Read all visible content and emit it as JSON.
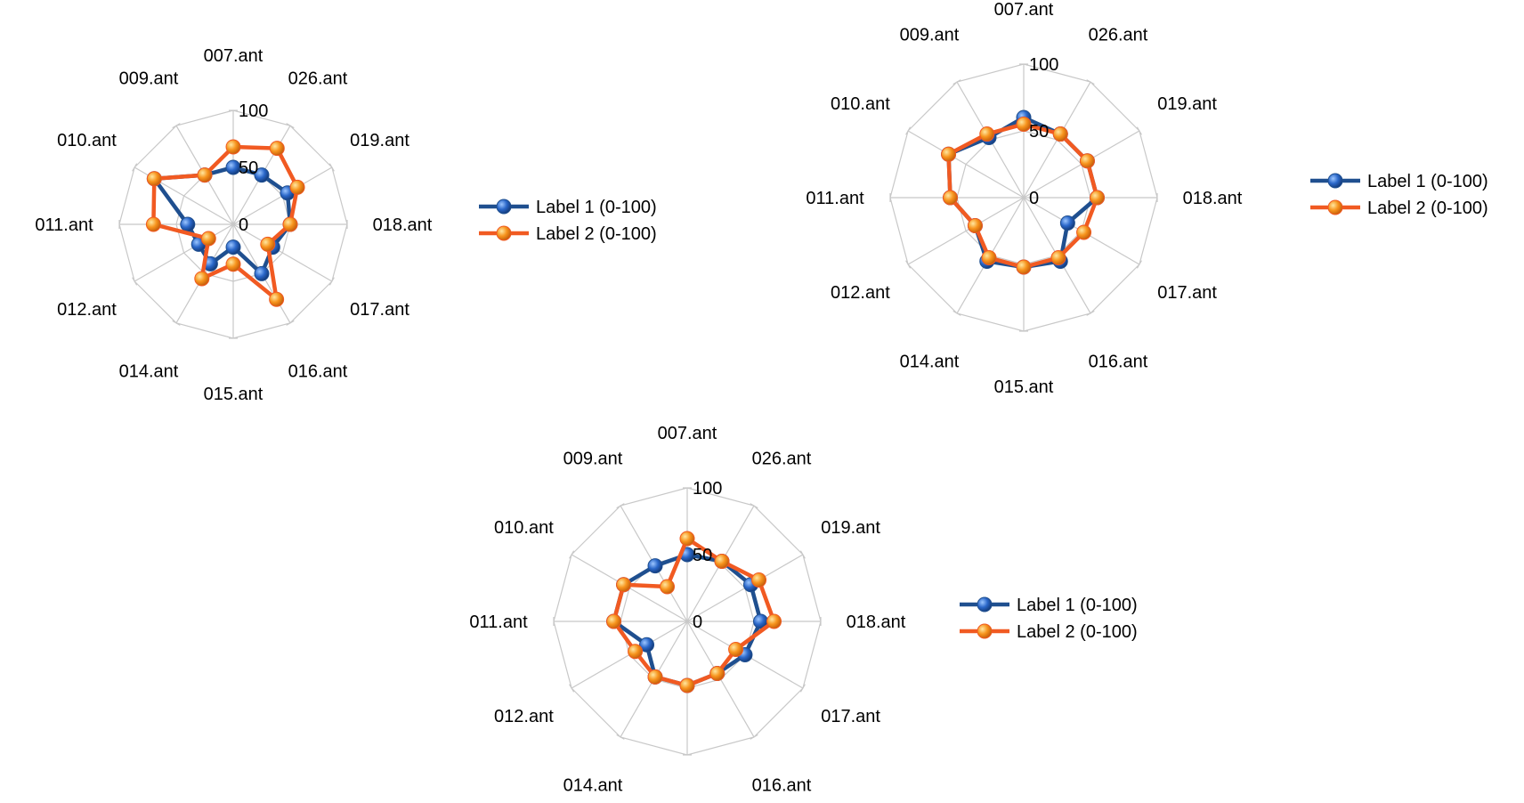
{
  "colors": {
    "label1": "#1f4f8f",
    "label1_marker": "#2a67c9",
    "label2": "#f15a22",
    "label2_marker": "#f7941d",
    "grid": "#c8c8c8",
    "text": "#000000"
  },
  "chart_data": [
    {
      "type": "radar",
      "categories": [
        "007.ant",
        "026.ant",
        "019.ant",
        "018.ant",
        "017.ant",
        "016.ant",
        "015.ant",
        "014.ant",
        "012.ant",
        "011.ant",
        "010.ant",
        "009.ant"
      ],
      "ylim": [
        0,
        100
      ],
      "ticks": [
        "0",
        "50",
        "100"
      ],
      "grid": true,
      "legend": "right",
      "series": [
        {
          "name": "Label 1 (0-100)",
          "values": [
            50,
            50,
            55,
            50,
            40,
            50,
            20,
            40,
            35,
            40,
            80,
            50
          ]
        },
        {
          "name": "Label 2 (0-100)",
          "values": [
            68,
            77,
            65,
            50,
            35,
            76,
            35,
            55,
            25,
            70,
            80,
            50
          ]
        }
      ]
    },
    {
      "type": "radar",
      "categories": [
        "007.ant",
        "026.ant",
        "019.ant",
        "018.ant",
        "017.ant",
        "016.ant",
        "015.ant",
        "014.ant",
        "012.ant",
        "011.ant",
        "010.ant",
        "009.ant"
      ],
      "ylim": [
        0,
        100
      ],
      "ticks": [
        "0",
        "50",
        "100"
      ],
      "grid": true,
      "legend": "right",
      "series": [
        {
          "name": "Label 1 (0-100)",
          "values": [
            60,
            55,
            55,
            55,
            38,
            55,
            52,
            55,
            42,
            55,
            65,
            52
          ]
        },
        {
          "name": "Label 2 (0-100)",
          "values": [
            55,
            55,
            55,
            55,
            52,
            52,
            52,
            52,
            42,
            55,
            65,
            55
          ]
        }
      ]
    },
    {
      "type": "radar",
      "categories": [
        "007.ant",
        "026.ant",
        "019.ant",
        "018.ant",
        "017.ant",
        "016.ant",
        "015.ant",
        "014.ant",
        "012.ant",
        "011.ant",
        "010.ant",
        "009.ant"
      ],
      "ylim": [
        0,
        100
      ],
      "ticks": [
        "0",
        "50",
        "100"
      ],
      "grid": true,
      "legend": "right",
      "series": [
        {
          "name": "Label 1 (0-100)",
          "values": [
            50,
            52,
            55,
            55,
            50,
            45,
            48,
            48,
            35,
            55,
            55,
            48
          ]
        },
        {
          "name": "Label 2 (0-100)",
          "values": [
            62,
            52,
            62,
            65,
            42,
            45,
            48,
            48,
            45,
            55,
            55,
            30
          ]
        }
      ]
    }
  ]
}
